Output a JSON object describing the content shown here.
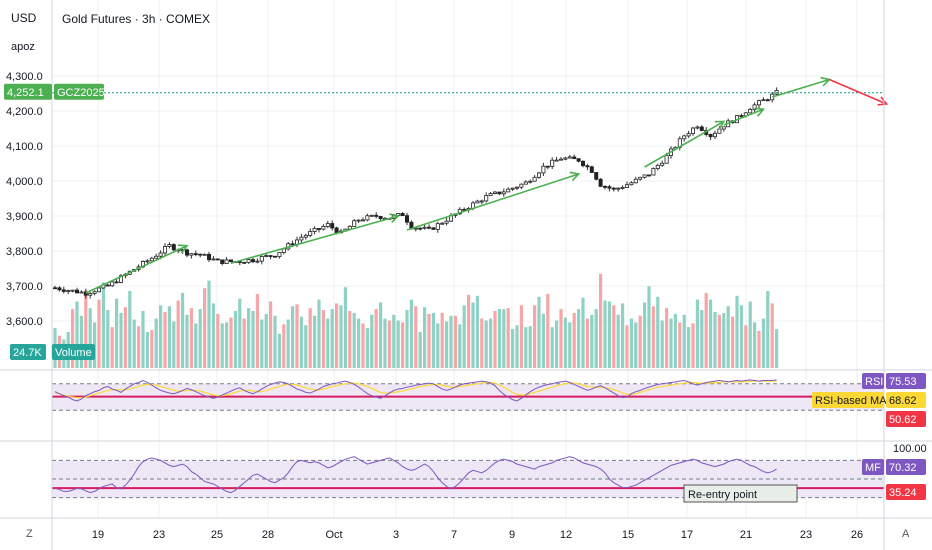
{
  "top_left": {
    "currency": "USD",
    "user": "apoz"
  },
  "title": "Gold Futures · 3h · COMEX",
  "symbol": {
    "ticker": "GCZ2025",
    "last_price": "4,252.1",
    "last_price_value": 4252.1
  },
  "colors": {
    "up": "#089981",
    "down": "#f23645",
    "volume_up": "#8fd1c5",
    "volume_down": "#f7a6a8",
    "arrow_green": "#4caf50",
    "arrow_red": "#f23645",
    "price_label": "#4caf50",
    "rsi_line": "#7e57c2",
    "rsi_ma": "#fdd835",
    "rsi_band": "#ede7f6",
    "level_line": "#d81b60",
    "volume_badge": "#26a69a",
    "mf_badge": "#7e57c2"
  },
  "chart_data": [
    {
      "type": "candlestick",
      "title": "Gold Futures · 3h · COMEX",
      "y_ticks": [
        "4,300.0",
        "4,200.0",
        "4,100.0",
        "4,000.0",
        "3,900.0",
        "3,800.0",
        "3,700.0",
        "3,600.0"
      ],
      "y_tick_values": [
        4300,
        4200,
        4100,
        4000,
        3900,
        3800,
        3700,
        3600
      ],
      "ylim": [
        3540,
        4360
      ],
      "x_ticks": [
        "19",
        "23",
        "25",
        "28",
        "Oct",
        "3",
        "7",
        "9",
        "12",
        "15",
        "17",
        "21",
        "23",
        "26"
      ],
      "price_path": [
        {
          "x": 0,
          "y": 3695
        },
        {
          "x": 3,
          "y": 3688
        },
        {
          "x": 7,
          "y": 3680
        },
        {
          "x": 12,
          "y": 3700
        },
        {
          "x": 17,
          "y": 3740
        },
        {
          "x": 22,
          "y": 3780
        },
        {
          "x": 26,
          "y": 3815
        },
        {
          "x": 30,
          "y": 3795
        },
        {
          "x": 33,
          "y": 3790
        },
        {
          "x": 37,
          "y": 3770
        },
        {
          "x": 41,
          "y": 3770
        },
        {
          "x": 45,
          "y": 3775
        },
        {
          "x": 50,
          "y": 3790
        },
        {
          "x": 56,
          "y": 3840
        },
        {
          "x": 62,
          "y": 3875
        },
        {
          "x": 65,
          "y": 3850
        },
        {
          "x": 69,
          "y": 3890
        },
        {
          "x": 73,
          "y": 3900
        },
        {
          "x": 76,
          "y": 3895
        },
        {
          "x": 79,
          "y": 3905
        },
        {
          "x": 81,
          "y": 3870
        },
        {
          "x": 85,
          "y": 3860
        },
        {
          "x": 89,
          "y": 3890
        },
        {
          "x": 93,
          "y": 3920
        },
        {
          "x": 98,
          "y": 3955
        },
        {
          "x": 103,
          "y": 3975
        },
        {
          "x": 107,
          "y": 3995
        },
        {
          "x": 111,
          "y": 4040
        },
        {
          "x": 115,
          "y": 4065
        },
        {
          "x": 119,
          "y": 4060
        },
        {
          "x": 122,
          "y": 4030
        },
        {
          "x": 124,
          "y": 3990
        },
        {
          "x": 127,
          "y": 3975
        },
        {
          "x": 131,
          "y": 3995
        },
        {
          "x": 135,
          "y": 4020
        },
        {
          "x": 139,
          "y": 4070
        },
        {
          "x": 143,
          "y": 4130
        },
        {
          "x": 146,
          "y": 4160
        },
        {
          "x": 149,
          "y": 4130
        },
        {
          "x": 152,
          "y": 4160
        },
        {
          "x": 155,
          "y": 4180
        },
        {
          "x": 158,
          "y": 4210
        },
        {
          "x": 161,
          "y": 4230
        },
        {
          "x": 164,
          "y": 4252
        }
      ],
      "green_arrows": [
        {
          "from": [
            7,
            3680
          ],
          "to": [
            30,
            3815
          ]
        },
        {
          "from": [
            40,
            3765
          ],
          "to": [
            78,
            3900
          ]
        },
        {
          "from": [
            80,
            3860
          ],
          "to": [
            119,
            4020
          ]
        },
        {
          "from": [
            134,
            4040
          ],
          "to": [
            152,
            4170
          ]
        },
        {
          "from": [
            152,
            4160
          ],
          "to": [
            161,
            4205
          ]
        },
        {
          "from": [
            163,
            4240
          ],
          "to": [
            176,
            4290
          ]
        }
      ],
      "red_arrow": {
        "from": [
          176,
          4290
        ],
        "to": [
          189,
          4220
        ]
      }
    },
    {
      "type": "bar",
      "name": "Volume",
      "value_label": "24.7K",
      "values": [
        0.42,
        0.34,
        0.3,
        0.38,
        0.62,
        0.7,
        0.55,
        0.82,
        0.63,
        0.48,
        0.72,
        0.9,
        0.61,
        0.43,
        0.73,
        0.58,
        0.64,
        0.81,
        0.51,
        0.44,
        0.6,
        0.38,
        0.4,
        0.52,
        0.66,
        0.59,
        0.65,
        0.49,
        0.71,
        0.79,
        0.56,
        0.63,
        0.47,
        0.62,
        0.84,
        0.92,
        0.68,
        0.57,
        0.47,
        0.48,
        0.53,
        0.6,
        0.73,
        0.52,
        0.63,
        0.6,
        0.78,
        0.51,
        0.57,
        0.7,
        0.55,
        0.36,
        0.46,
        0.51,
        0.65,
        0.67,
        0.54,
        0.45,
        0.63,
        0.55,
        0.72,
        0.61,
        0.52,
        0.62,
        0.68,
        0.66,
        0.85,
        0.6,
        0.58,
        0.52,
        0.47,
        0.42,
        0.56,
        0.62,
        0.69,
        0.52,
        0.5,
        0.56,
        0.5,
        0.48,
        0.61,
        0.72,
        0.65,
        0.38,
        0.64,
        0.57,
        0.58,
        0.47,
        0.58,
        0.49,
        0.55,
        0.55,
        0.46,
        0.66,
        0.77,
        0.69,
        0.76,
        0.52,
        0.5,
        0.52,
        0.6,
        0.62,
        0.62,
        0.63,
        0.41,
        0.45,
        0.66,
        0.43,
        0.44,
        0.66,
        0.75,
        0.57,
        0.78,
        0.43,
        0.5,
        0.62,
        0.53,
        0.48,
        0.58,
        0.62,
        0.74,
        0.52,
        0.56,
        0.62,
        0.99,
        0.71,
        0.7,
        0.66,
        0.56,
        0.68,
        0.45,
        0.52,
        0.48,
        0.55,
        0.69,
        0.86,
        0.65,
        0.75,
        0.5,
        0.63,
        0.52,
        0.57,
        0.48,
        0.56,
        0.43,
        0.47,
        0.72,
        0.61,
        0.79,
        0.72,
        0.59,
        0.56,
        0.58,
        0.65,
        0.54,
        0.76,
        0.66,
        0.45,
        0.7,
        0.48,
        0.39,
        0.52,
        0.81,
        0.68,
        0.41,
        0.38,
        0.25,
        0.3
      ]
    },
    {
      "type": "line",
      "name": "RSI",
      "labels": {
        "rsi": "RSI",
        "rsi_value": "75.53",
        "ma": "RSI-based MA",
        "ma_value": "68.62",
        "level_value": "50.62"
      },
      "rsi": [
        58,
        55,
        52,
        50,
        46,
        44,
        47,
        52,
        55,
        58,
        60,
        64,
        66,
        62,
        60,
        57,
        62,
        66,
        70,
        72,
        75,
        72,
        68,
        64,
        60,
        58,
        56,
        55,
        57,
        60,
        63,
        61,
        58,
        55,
        52,
        50,
        48,
        50,
        53,
        56,
        59,
        62,
        64,
        60,
        57,
        55,
        58,
        62,
        66,
        69,
        71,
        73,
        72,
        70,
        66,
        62,
        60,
        57,
        56,
        59,
        62,
        66,
        68,
        70,
        71,
        73,
        74,
        72,
        69,
        65,
        60,
        55,
        52,
        50,
        48,
        52,
        56,
        60,
        62,
        63,
        65,
        66,
        68,
        69,
        70,
        71,
        70,
        66,
        62,
        60,
        62,
        65,
        68,
        70,
        71,
        72,
        73,
        74,
        73,
        71,
        67,
        60,
        54,
        50,
        46,
        44,
        48,
        53,
        58,
        62,
        65,
        67,
        69,
        70,
        72,
        73,
        74,
        72,
        69,
        66,
        63,
        60,
        62,
        65,
        67,
        64,
        60,
        56,
        52,
        49,
        50,
        55,
        58,
        60,
        63,
        65,
        67,
        69,
        70,
        71,
        72,
        73,
        74,
        75,
        73,
        70,
        68,
        70,
        72,
        73,
        74,
        75,
        74,
        73,
        74,
        75,
        74,
        75,
        76,
        75,
        74,
        75,
        75,
        75,
        76,
        76
      ],
      "rsi_ma": [
        56,
        55,
        53,
        51,
        50,
        49,
        49,
        50,
        52,
        54,
        56,
        58,
        60,
        61,
        61,
        61,
        61,
        62,
        64,
        66,
        68,
        69,
        69,
        68,
        66,
        64,
        62,
        60,
        59,
        59,
        60,
        60,
        60,
        59,
        57,
        55,
        53,
        52,
        52,
        53,
        55,
        57,
        59,
        60,
        60,
        59,
        58,
        58,
        60,
        62,
        64,
        66,
        68,
        69,
        69,
        68,
        66,
        64,
        62,
        61,
        61,
        62,
        64,
        66,
        67,
        69,
        70,
        71,
        71,
        70,
        68,
        66,
        63,
        60,
        57,
        56,
        56,
        57,
        58,
        59,
        61,
        62,
        64,
        66,
        67,
        68,
        69,
        69,
        68,
        66,
        65,
        65,
        66,
        67,
        68,
        69,
        70,
        71,
        72,
        72,
        71,
        68,
        65,
        61,
        57,
        54,
        53,
        53,
        55,
        57,
        59,
        61,
        63,
        65,
        67,
        69,
        70,
        71,
        71,
        70,
        68,
        66,
        65,
        65,
        65,
        64,
        63,
        61,
        59,
        56,
        54,
        54,
        55,
        57,
        59,
        61,
        63,
        65,
        66,
        67,
        68,
        69,
        70,
        71,
        72,
        72,
        71,
        71,
        71,
        71,
        72,
        72,
        73,
        73,
        73,
        73,
        73,
        73,
        74,
        74,
        74,
        74,
        74,
        74,
        74,
        75
      ],
      "upper_band": 70,
      "lower_band": 30,
      "level": 50.62
    },
    {
      "type": "line",
      "name": "MF",
      "labels": {
        "mf": "MF",
        "mf_value": "70.32",
        "top_value": "100.00",
        "level_value": "35.24",
        "note": "Re-entry point"
      },
      "values": [
        35,
        33,
        30,
        30,
        32,
        35,
        34,
        31,
        28,
        30,
        34,
        38,
        40,
        42,
        36,
        34,
        40,
        48,
        58,
        70,
        78,
        82,
        84,
        82,
        80,
        76,
        72,
        70,
        72,
        74,
        70,
        62,
        58,
        52,
        46,
        44,
        42,
        38,
        34,
        30,
        28,
        32,
        38,
        44,
        50,
        56,
        58,
        54,
        50,
        46,
        44,
        48,
        52,
        60,
        70,
        78,
        80,
        78,
        76,
        78,
        76,
        72,
        68,
        70,
        74,
        78,
        82,
        84,
        86,
        82,
        78,
        74,
        76,
        78,
        80,
        82,
        84,
        80,
        76,
        70,
        66,
        64,
        66,
        70,
        74,
        70,
        62,
        52,
        44,
        38,
        34,
        38,
        44,
        52,
        60,
        64,
        62,
        60,
        64,
        70,
        76,
        80,
        82,
        80,
        78,
        74,
        72,
        70,
        68,
        66,
        70,
        72,
        74,
        76,
        80,
        82,
        84,
        86,
        84,
        80,
        76,
        74,
        72,
        70,
        66,
        60,
        50,
        44,
        40,
        36,
        36,
        38,
        40,
        44,
        48,
        52,
        56,
        60,
        64,
        68,
        72,
        74,
        76,
        78,
        80,
        82,
        80,
        76,
        74,
        72,
        70,
        72,
        74,
        78,
        80,
        82,
        80,
        76,
        72,
        70,
        66,
        62,
        60,
        62,
        66,
        70
      ],
      "upper_band": 80,
      "lower_band": 20,
      "level": 35.24
    }
  ],
  "bottom_labels": {
    "left": "Z",
    "right": "A"
  }
}
